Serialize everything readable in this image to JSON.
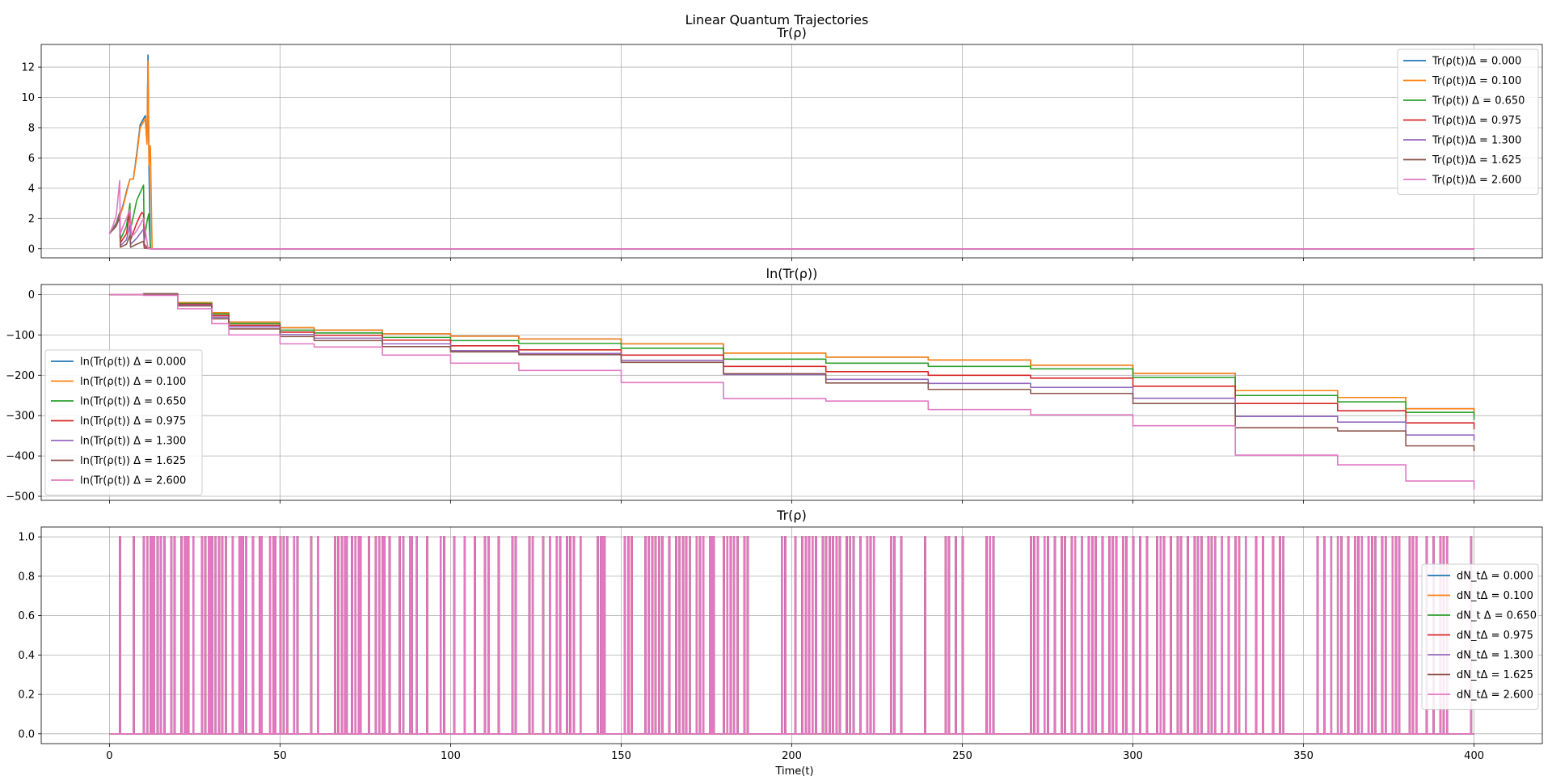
{
  "figure": {
    "suptitle": "Linear Quantum Trajectories",
    "xlabel": "Time(t)",
    "x_ticks": [
      0,
      50,
      100,
      150,
      200,
      250,
      300,
      350,
      400
    ],
    "x_tick_labels": [
      "0",
      "50",
      "100",
      "150",
      "200",
      "250",
      "300",
      "350",
      "400"
    ],
    "xlim": [
      -20,
      420
    ],
    "sharex": true,
    "grid": true
  },
  "chart_data": [
    {
      "type": "line",
      "title": "Tr(ρ)",
      "ylim": [
        -0.6,
        13.5
      ],
      "y_ticks": [
        0,
        2,
        4,
        6,
        8,
        10,
        12
      ],
      "y_tick_labels": [
        "0",
        "2",
        "4",
        "6",
        "8",
        "10",
        "12"
      ],
      "legend_placement": "upper right",
      "series": [
        {
          "name": "Tr(ρ(t))Δ = 0.000",
          "color": "#1f77b4",
          "x": [
            0,
            2,
            3,
            4,
            5,
            6,
            7,
            8,
            9,
            10,
            10.5,
            11,
            11.3,
            11.6,
            12,
            12.5,
            400
          ],
          "y": [
            1.0,
            1.6,
            2.1,
            2.9,
            3.8,
            4.6,
            4.6,
            6.3,
            8.2,
            8.6,
            8.8,
            7.0,
            12.8,
            5.2,
            0.02,
            0,
            0
          ]
        },
        {
          "name": "Tr(ρ(t))Δ = 0.100",
          "color": "#ff7f0e",
          "x": [
            0,
            2,
            3,
            4,
            5,
            6,
            7,
            8,
            9,
            10,
            10.5,
            11,
            11.3,
            11.6,
            12,
            12.5,
            400
          ],
          "y": [
            1.0,
            1.6,
            2.1,
            2.8,
            3.7,
            4.6,
            4.6,
            6.1,
            8.0,
            8.4,
            8.6,
            6.9,
            12.4,
            5.5,
            6.8,
            0,
            0
          ]
        },
        {
          "name": "Tr(ρ(t)) Δ = 0.650",
          "color": "#2ca02c",
          "x": [
            0,
            2,
            3,
            3.2,
            5,
            6,
            6.2,
            8,
            10,
            10.2,
            11,
            11.5,
            12,
            400
          ],
          "y": [
            1.0,
            1.7,
            2.4,
            0.6,
            1.5,
            3.0,
            1.3,
            3.2,
            4.2,
            0.5,
            1.8,
            2.3,
            0,
            0
          ]
        },
        {
          "name": "Tr(ρ(t))Δ = 0.975",
          "color": "#d62728",
          "x": [
            0,
            2,
            3,
            3.2,
            5,
            6,
            6.2,
            8,
            9,
            9.5,
            10,
            10.2,
            11,
            12,
            400
          ],
          "y": [
            1.0,
            1.6,
            2.3,
            0.4,
            1.0,
            2.5,
            0.6,
            1.7,
            2.2,
            2.4,
            2.3,
            0.3,
            0.1,
            0,
            0
          ]
        },
        {
          "name": "Tr(ρ(t))Δ = 1.300",
          "color": "#9467bd",
          "x": [
            0,
            2,
            3,
            3.2,
            5,
            6,
            6.2,
            8,
            10,
            10.2,
            12,
            400
          ],
          "y": [
            1.0,
            1.6,
            2.2,
            0.2,
            0.6,
            1.6,
            0.3,
            0.7,
            1.3,
            0.1,
            0,
            0
          ]
        },
        {
          "name": "Tr(ρ(t))Δ = 1.625",
          "color": "#8c564b",
          "x": [
            0,
            2,
            3,
            3.2,
            5,
            6,
            6.2,
            8,
            10,
            10.2,
            12,
            400
          ],
          "y": [
            1.0,
            1.5,
            2.1,
            0.1,
            0.3,
            0.9,
            0.1,
            0.3,
            0.5,
            0.05,
            0,
            0
          ]
        },
        {
          "name": "Tr(ρ(t))Δ = 2.600",
          "color": "#e377c2",
          "x": [
            0,
            1,
            2,
            3,
            3.2,
            4,
            5,
            6,
            6.5,
            7,
            8,
            9,
            10,
            11,
            11.3,
            400
          ],
          "y": [
            1.0,
            1.5,
            2.2,
            4.5,
            1.0,
            1.5,
            2.0,
            2.6,
            0.9,
            0.9,
            1.2,
            1.6,
            2.0,
            0.5,
            0,
            0
          ]
        }
      ]
    },
    {
      "type": "line",
      "title": "ln(Tr(ρ))",
      "ylim": [
        -510,
        25
      ],
      "y_ticks": [
        0,
        -100,
        -200,
        -300,
        -400,
        -500
      ],
      "y_tick_labels": [
        "0",
        "−100",
        "−200",
        "−300",
        "−400",
        "−500"
      ],
      "legend_placement": "lower left",
      "series": [
        {
          "name": "ln(Tr(ρ(t)) Δ = 0.000",
          "color": "#1f77b4",
          "x": [
            0,
            10,
            20,
            30,
            35,
            50,
            60,
            80,
            100,
            120,
            150,
            180,
            210,
            240,
            270,
            300,
            330,
            360,
            380,
            400
          ],
          "y": [
            0,
            1,
            -20,
            -45,
            -68,
            -82,
            -88,
            -97,
            -103,
            -110,
            -122,
            -145,
            -155,
            -162,
            -175,
            -195,
            -238,
            -255,
            -283,
            -298
          ]
        },
        {
          "name": "ln(Tr(ρ(t)) Δ = 0.100",
          "color": "#ff7f0e",
          "x": [
            0,
            10,
            20,
            30,
            35,
            50,
            60,
            80,
            100,
            120,
            150,
            180,
            210,
            240,
            270,
            300,
            330,
            360,
            380,
            400
          ],
          "y": [
            0,
            1,
            -20,
            -45,
            -68,
            -82,
            -88,
            -97,
            -103,
            -110,
            -122,
            -145,
            -155,
            -162,
            -175,
            -195,
            -238,
            -255,
            -283,
            -298
          ]
        },
        {
          "name": "ln(Tr(ρ(t)) Δ = 0.650",
          "color": "#2ca02c",
          "x": [
            0,
            10,
            20,
            30,
            35,
            50,
            60,
            80,
            100,
            120,
            150,
            180,
            210,
            240,
            270,
            300,
            330,
            360,
            380,
            400
          ],
          "y": [
            0,
            1,
            -22,
            -48,
            -72,
            -88,
            -95,
            -106,
            -114,
            -121,
            -133,
            -160,
            -170,
            -178,
            -184,
            -205,
            -250,
            -266,
            -292,
            -311
          ]
        },
        {
          "name": "ln(Tr(ρ(t)) Δ = 0.975",
          "color": "#d62728",
          "x": [
            0,
            10,
            20,
            30,
            35,
            50,
            60,
            80,
            100,
            120,
            150,
            180,
            210,
            240,
            270,
            300,
            330,
            360,
            380,
            400
          ],
          "y": [
            0,
            2,
            -24,
            -52,
            -76,
            -93,
            -101,
            -113,
            -127,
            -137,
            -150,
            -178,
            -191,
            -200,
            -207,
            -227,
            -270,
            -288,
            -318,
            -334
          ]
        },
        {
          "name": "ln(Tr(ρ(t)) Δ = 1.300",
          "color": "#9467bd",
          "x": [
            0,
            10,
            20,
            30,
            35,
            50,
            60,
            80,
            100,
            120,
            150,
            180,
            210,
            240,
            270,
            300,
            330,
            360,
            380,
            400
          ],
          "y": [
            0,
            2,
            -26,
            -56,
            -80,
            -99,
            -108,
            -122,
            -139,
            -146,
            -163,
            -198,
            -210,
            -220,
            -230,
            -257,
            -302,
            -316,
            -348,
            -362
          ]
        },
        {
          "name": "ln(Tr(ρ(t)) Δ = 1.625",
          "color": "#8c564b",
          "x": [
            0,
            10,
            20,
            30,
            35,
            50,
            60,
            80,
            100,
            120,
            150,
            180,
            210,
            240,
            270,
            300,
            330,
            360,
            380,
            400
          ],
          "y": [
            0,
            2,
            -28,
            -60,
            -85,
            -104,
            -114,
            -129,
            -142,
            -149,
            -168,
            -196,
            -219,
            -235,
            -245,
            -270,
            -330,
            -338,
            -375,
            -388
          ]
        },
        {
          "name": "ln(Tr(ρ(t)) Δ = 2.600",
          "color": "#e377c2",
          "x": [
            0,
            10,
            20,
            30,
            35,
            50,
            60,
            80,
            100,
            120,
            150,
            180,
            210,
            240,
            270,
            300,
            330,
            360,
            380,
            400
          ],
          "y": [
            0,
            -2,
            -35,
            -72,
            -100,
            -122,
            -130,
            -150,
            -170,
            -188,
            -218,
            -258,
            -264,
            -285,
            -298,
            -325,
            -398,
            -422,
            -462,
            -483
          ]
        }
      ]
    },
    {
      "type": "line",
      "title": "Tr(ρ)",
      "ylim": [
        -0.05,
        1.05
      ],
      "y_ticks": [
        0.0,
        0.2,
        0.4,
        0.6,
        0.8,
        1.0
      ],
      "y_tick_labels": [
        "0.0",
        "0.2",
        "0.4",
        "0.6",
        "0.8",
        "1.0"
      ],
      "legend_placement": "center right",
      "series": [
        {
          "name": "dN_tΔ = 0.000",
          "color": "#1f77b4"
        },
        {
          "name": "dN_tΔ = 0.100",
          "color": "#ff7f0e"
        },
        {
          "name": "dN_t Δ = 0.650",
          "color": "#2ca02c"
        },
        {
          "name": "dN_tΔ = 0.975",
          "color": "#d62728"
        },
        {
          "name": "dN_tΔ = 1.300",
          "color": "#9467bd"
        },
        {
          "name": "dN_tΔ = 1.625",
          "color": "#8c564b"
        },
        {
          "name": "dN_tΔ = 2.600",
          "color": "#e377c2"
        }
      ],
      "jump_times": [
        3,
        7,
        10,
        11,
        12,
        12.5,
        13,
        14,
        15,
        16,
        18,
        19,
        21,
        22,
        22.5,
        23,
        24.5,
        27,
        28,
        29,
        29.5,
        30,
        31,
        32,
        33,
        34,
        36,
        38,
        38.5,
        39,
        40,
        42,
        44,
        44.5,
        47,
        48,
        48.5,
        50,
        51,
        52,
        54,
        55,
        59,
        61,
        66,
        67,
        68,
        69,
        69.5,
        71,
        72,
        73,
        73.5,
        76,
        78,
        79,
        80,
        80.5,
        82,
        85,
        86,
        88,
        88.5,
        90,
        93,
        97,
        98,
        101,
        104,
        107,
        110,
        111,
        114,
        118,
        119,
        123,
        124,
        127,
        129,
        131,
        132,
        134,
        135,
        136,
        138,
        143,
        144,
        144.5,
        145,
        151,
        152,
        153,
        157,
        158,
        159,
        160,
        161,
        162,
        164,
        166,
        167,
        168,
        169,
        170,
        172,
        173,
        174,
        176,
        176.5,
        177,
        180,
        181,
        182,
        183,
        184,
        186,
        187,
        197,
        198,
        201,
        203,
        204,
        205,
        206,
        207,
        209,
        210,
        211,
        212,
        213,
        214,
        216,
        217,
        218,
        220,
        222,
        223,
        224,
        229,
        230,
        232,
        239,
        245,
        246,
        248,
        250,
        257,
        258,
        259,
        270,
        271,
        272,
        274,
        275,
        277,
        279,
        280,
        282,
        283,
        285,
        287,
        288,
        289,
        291,
        293,
        294,
        295,
        297,
        298,
        300,
        302,
        304,
        307,
        308,
        309,
        311,
        313,
        314,
        316,
        318,
        319,
        320,
        322,
        323,
        324,
        326,
        328,
        330,
        331,
        333,
        336,
        338,
        341,
        343,
        344,
        354,
        356,
        358,
        360,
        361,
        363,
        365,
        366,
        367,
        369,
        370,
        371,
        373,
        374,
        376,
        377,
        378,
        381,
        382,
        383,
        386,
        388,
        390,
        391,
        392,
        399
      ]
    }
  ]
}
